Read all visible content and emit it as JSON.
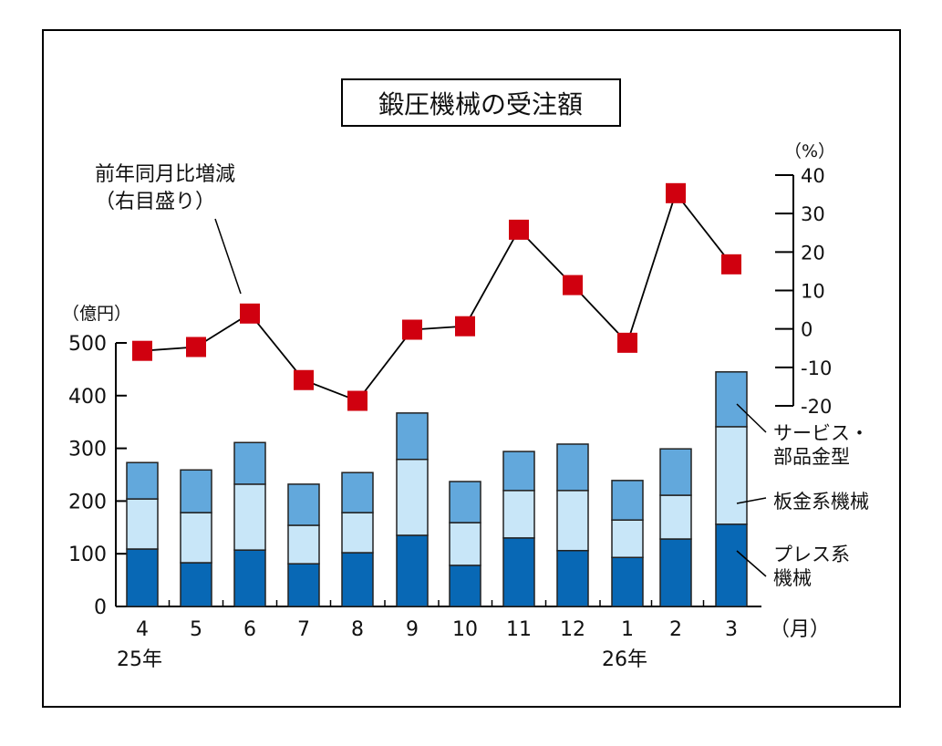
{
  "chart_data": {
    "type": "bar",
    "title": "鍛圧機械の受注額",
    "categories": [
      "4",
      "5",
      "6",
      "7",
      "8",
      "9",
      "10",
      "11",
      "12",
      "1",
      "2",
      "3"
    ],
    "x_unit": "（月）",
    "year_labels": [
      {
        "index": 0,
        "label": "25年"
      },
      {
        "index": 9,
        "label": "26年"
      }
    ],
    "ylabel": "（億円）",
    "ylim": [
      0,
      500
    ],
    "yticks": [
      0,
      100,
      200,
      300,
      400,
      500
    ],
    "y2label": "（%）",
    "y2lim": [
      -20,
      40
    ],
    "y2ticks": [
      -20,
      -10,
      0,
      10,
      20,
      30,
      40
    ],
    "series": [
      {
        "name": "プレス系機械",
        "label_lines": [
          "プレス系",
          "機械"
        ],
        "color": "#0868b5",
        "values": [
          109,
          83,
          107,
          81,
          102,
          135,
          78,
          130,
          106,
          93,
          128,
          156
        ]
      },
      {
        "name": "板金系機械",
        "label_lines": [
          "板金系機械"
        ],
        "color": "#c8e6f8",
        "values": [
          95,
          95,
          125,
          73,
          76,
          144,
          81,
          90,
          114,
          71,
          83,
          185
        ]
      },
      {
        "name": "サービス・部品金型",
        "label_lines": [
          "サービス・",
          "部品金型"
        ],
        "color": "#62a8dc",
        "values": [
          69,
          81,
          79,
          78,
          76,
          88,
          78,
          74,
          88,
          75,
          88,
          104
        ]
      }
    ],
    "line": {
      "name": "前年同月比増減（右目盛り）",
      "label_lines": [
        "前年同月比増減",
        "（右目盛り）"
      ],
      "color": "#d0000f",
      "axis": "right",
      "values": [
        -5.7,
        -4.7,
        4,
        -13.3,
        -18.7,
        -0.2,
        0.7,
        25.8,
        11.4,
        -3.6,
        35.3,
        16.8
      ]
    }
  }
}
